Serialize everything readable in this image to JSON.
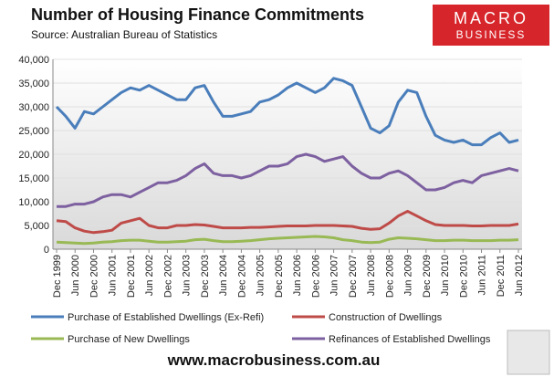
{
  "chart_data": {
    "type": "line",
    "title": "Number of Housing Finance Commitments",
    "subtitle": "Source: Australian Bureau of Statistics",
    "categories": [
      "Dec 1999",
      null,
      "Jun 2000",
      null,
      "Dec 2000",
      null,
      "Jun 2001",
      null,
      "Dec 2001",
      null,
      "Jun 2002",
      null,
      "Dec 2002",
      null,
      "Jun 2003",
      null,
      "Dec 2003",
      null,
      "Jun 2004",
      null,
      "Dec 2004",
      null,
      "Jun 2005",
      null,
      "Dec 2005",
      null,
      "Jun 2006",
      null,
      "Dec 2006",
      null,
      "Jun 2007",
      null,
      "Dec 2007",
      null,
      "Jun 2008",
      null,
      "Dec 2008",
      null,
      "Jun 2009",
      null,
      "Dec 2009",
      null,
      "Jun 2010",
      null,
      "Dec 2010",
      null,
      "Jun 2011",
      null,
      "Dec 2011",
      null,
      "Jun 2012"
    ],
    "series": [
      {
        "name": "Purchase of Established Dwellings (Ex-Refi)",
        "color": "#4a7ebb",
        "values": [
          30000,
          28000,
          25500,
          29000,
          28500,
          30000,
          31500,
          33000,
          34000,
          33500,
          34500,
          33500,
          32500,
          31500,
          31500,
          34000,
          34500,
          31000,
          28000,
          28000,
          28500,
          29000,
          31000,
          31500,
          32500,
          34000,
          35000,
          34000,
          33000,
          34000,
          36000,
          35500,
          34500,
          30000,
          25500,
          24500,
          26000,
          31000,
          33500,
          33000,
          28000,
          24000,
          23000,
          22500,
          23000,
          22000,
          22000,
          23500,
          24500,
          22500,
          23000
        ]
      },
      {
        "name": "Construction of Dwellings",
        "color": "#be4b48",
        "values": [
          6000,
          5800,
          4500,
          3800,
          3500,
          3700,
          4000,
          5500,
          6000,
          6500,
          5000,
          4500,
          4500,
          5000,
          5000,
          5200,
          5100,
          4800,
          4500,
          4500,
          4500,
          4600,
          4600,
          4700,
          4800,
          4900,
          4900,
          4900,
          5000,
          5000,
          5000,
          4900,
          4800,
          4400,
          4200,
          4300,
          5500,
          7000,
          8000,
          7000,
          6000,
          5200,
          5000,
          5000,
          5000,
          4900,
          4900,
          5000,
          5000,
          5000,
          5300
        ]
      },
      {
        "name": "Purchase of New Dwellings",
        "color": "#98b954",
        "values": [
          1500,
          1400,
          1300,
          1200,
          1300,
          1500,
          1600,
          1800,
          1900,
          1900,
          1700,
          1500,
          1500,
          1600,
          1700,
          2000,
          2100,
          1800,
          1600,
          1600,
          1700,
          1800,
          2000,
          2200,
          2300,
          2400,
          2500,
          2600,
          2700,
          2600,
          2400,
          2000,
          1800,
          1500,
          1400,
          1500,
          2100,
          2400,
          2300,
          2200,
          2000,
          1800,
          1800,
          1900,
          1900,
          1800,
          1800,
          1800,
          1900,
          1900,
          2000
        ]
      },
      {
        "name": "Refinances of Established Dwellings",
        "color": "#7d60a0",
        "values": [
          9000,
          9000,
          9500,
          9500,
          10000,
          11000,
          11500,
          11500,
          11000,
          12000,
          13000,
          14000,
          14000,
          14500,
          15500,
          17000,
          18000,
          16000,
          15500,
          15500,
          15000,
          15500,
          16500,
          17500,
          17500,
          18000,
          19500,
          20000,
          19500,
          18500,
          19000,
          19500,
          17500,
          16000,
          15000,
          15000,
          16000,
          16500,
          15500,
          14000,
          12500,
          12500,
          13000,
          14000,
          14500,
          14000,
          15500,
          16000,
          16500,
          17000,
          16500
        ]
      }
    ],
    "ylim": [
      0,
      40000
    ],
    "yticks": [
      0,
      {
        "value": 5000,
        "label": "5,000"
      },
      {
        "value": 10000,
        "label": "10,000"
      },
      {
        "value": 15000,
        "label": "15,000"
      },
      {
        "value": 20000,
        "label": "20,000"
      },
      {
        "value": 25000,
        "label": "25,000"
      },
      {
        "value": 30000,
        "label": "30,000"
      },
      {
        "value": 35000,
        "label": "35,000"
      },
      {
        "value": 40000,
        "label": "40,000"
      }
    ],
    "grid": true
  },
  "logo": {
    "line1": "MACRO",
    "line2": "BUSINESS"
  },
  "footer": "www.macrobusiness.com.au"
}
